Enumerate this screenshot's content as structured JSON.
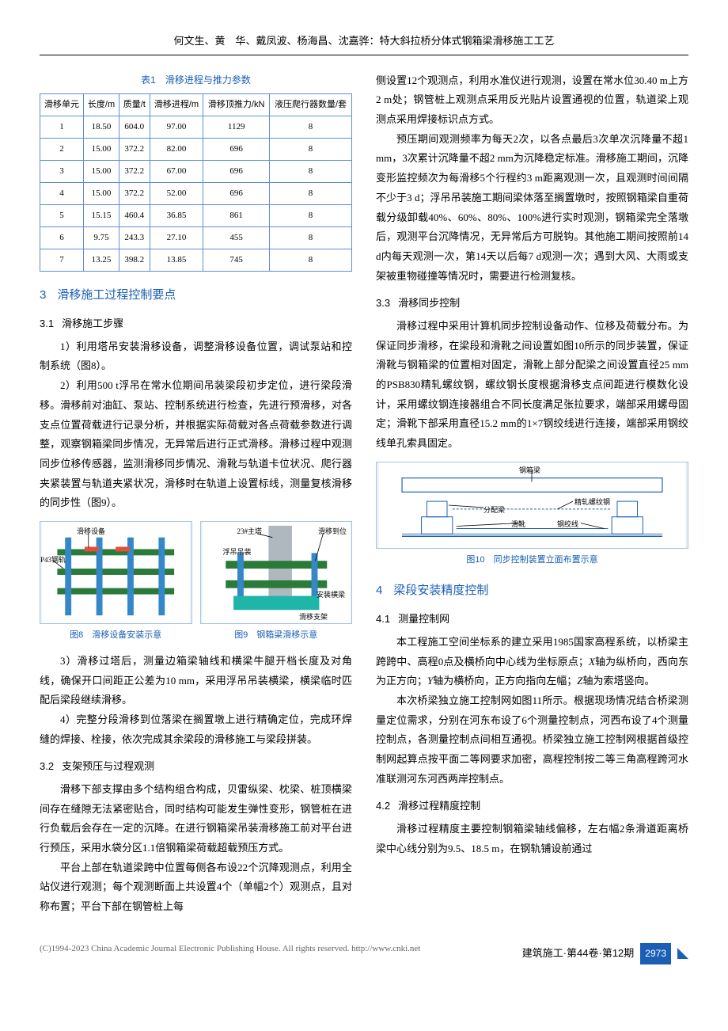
{
  "header": "何文生、黄　华、戴凤波、杨海昌、沈嘉骅：特大斜拉桥分体式钢箱梁滑移施工工艺",
  "table1": {
    "caption": "表1　滑移进程与推力参数",
    "headers": [
      "滑移单元",
      "长度/m",
      "质量/t",
      "滑移进程/m",
      "滑移顶推力/kN",
      "液压爬行器数量/套"
    ],
    "rows": [
      [
        "1",
        "18.50",
        "604.0",
        "97.00",
        "1129",
        "8"
      ],
      [
        "2",
        "15.00",
        "372.2",
        "82.00",
        "696",
        "8"
      ],
      [
        "3",
        "15.00",
        "372.2",
        "67.00",
        "696",
        "8"
      ],
      [
        "4",
        "15.00",
        "372.2",
        "52.00",
        "696",
        "8"
      ],
      [
        "5",
        "15.15",
        "460.4",
        "36.85",
        "861",
        "8"
      ],
      [
        "6",
        "9.75",
        "243.3",
        "27.10",
        "455",
        "8"
      ],
      [
        "7",
        "13.25",
        "398.2",
        "13.85",
        "745",
        "8"
      ]
    ]
  },
  "sec3": {
    "num": "3",
    "title": "滑移施工过程控制要点"
  },
  "sec31": {
    "num": "3.1",
    "title": "滑移施工步骤",
    "p1": "1）利用塔吊安装滑移设备，调整滑移设备位置，调试泵站和控制系统（图8）。",
    "p2": "2）利用500 t浮吊在常水位期间吊装梁段初步定位，进行梁段滑移。滑移前对油缸、泵站、控制系统进行检查，先进行预滑移，对各支点位置荷载进行记录分析，并根据实际荷载对各点荷载参数进行调整，观察钢箱梁同步情况，无异常后进行正式滑移。滑移过程中观测同步位移传感器，监测滑移同步情况、滑靴与轨道卡位状况、爬行器夹紧装置与轨道夹紧状况，滑移时在轨道上设置标线，测量复核滑移的同步性（图9）。",
    "p3": "3）滑移过塔后，测量边箱梁轴线和横梁牛腿开档长度及对角线，确保开口间距正公差为10 mm，采用浮吊吊装横梁，横梁临时匹配后梁段继续滑移。",
    "p4": "4）完整分段滑移到位落梁在搁置墩上进行精确定位，完成环焊缝的焊接、栓接，依次完成其余梁段的滑移施工与梁段拼装。"
  },
  "fig8": {
    "caption": "图8　滑移设备安装示意",
    "labels": {
      "a": "滑移设备",
      "b": "P43钢轨"
    }
  },
  "fig9": {
    "caption": "图9　钢箱梁滑移示意",
    "labels": {
      "a": "23#主塔",
      "b": "浮吊吊装",
      "c": "滑移到位",
      "d": "安装横梁",
      "e": "滑移支架"
    }
  },
  "sec32": {
    "num": "3.2",
    "title": "支架预压与过程观测",
    "p1": "滑移下部支撑由多个结构组合构成，贝雷纵梁、枕梁、桩顶横梁间存在缝隙无法紧密贴合，同时结构可能发生弹性变形，钢管桩在进行负载后会存在一定的沉降。在进行钢箱梁吊装滑移施工前对平台进行预压，采用水袋分区1.1倍钢箱梁荷载超载预压方式。",
    "p2": "平台上部在轨道梁跨中位置每侧各布设22个沉降观测点，利用全站仪进行观测；每个观测断面上共设置4个（单幅2个）观测点，且对称布置；平台下部在钢管桩上每",
    "p3": "侧设置12个观测点，利用水准仪进行观测，设置在常水位30.40 m上方2 m处；钢管桩上观测点采用反光贴片设置通视的位置，轨道梁上观测点采用焊接标识点方式。",
    "p4": "预压期间观测频率为每天2次，以各点最后3次单次沉降量不超1 mm，3次累计沉降量不超2 mm为沉降稳定标准。滑移施工期间，沉降变形监控频次为每滑移5个行程约3 m距离观测一次，且观测时间间隔不少于3 d；浮吊吊装施工期间梁体落至搁置墩时，按照钢箱梁自重荷载分级卸载40%、60%、80%、100%进行实时观测，钢箱梁完全落墩后，观测平台沉降情况，无异常后方可脱钩。其他施工期间按照前14 d内每天观测一次，第14天以后每7 d观测一次；遇到大风、大雨或支架被重物碰撞等情况时，需要进行检测复核。"
  },
  "sec33": {
    "num": "3.3",
    "title": "滑移同步控制",
    "p1": "滑移过程中采用计算机同步控制设备动作、位移及荷载分布。为保证同步滑移，在梁段和滑靴之间设置如图10所示的同步装置，保证滑靴与钢箱梁的位置相对固定，滑靴上部分配梁之间设置直径25 mm的PSB830精轧螺纹钢，螺纹钢长度根据滑移支点间距进行模数化设计，采用螺纹钢连接器组合不同长度满足张拉要求，端部采用螺母固定；滑靴下部采用直径15.2 mm的1×7钢绞线进行连接，端部采用钢绞线单孔索具固定。"
  },
  "fig10": {
    "caption": "图10　同步控制装置立面布置示意",
    "labels": {
      "a": "钢箱梁",
      "b": "精轧螺纹钢",
      "c": "分配梁",
      "d": "滑靴",
      "e": "钢绞线"
    }
  },
  "sec4": {
    "num": "4",
    "title": "梁段安装精度控制"
  },
  "sec41": {
    "num": "4.1",
    "title": "测量控制网",
    "p1_a": "本工程施工空间坐标系的建立采用1985国家高程系统，以桥梁主跨跨中、高程0点及横桥向中心线为坐标原点；",
    "p1_x": "X",
    "p1_b": "轴为纵桥向，西向东为正方向；",
    "p1_y": "Y",
    "p1_c": "轴为横桥向，正方向指向左幅；",
    "p1_z": "Z",
    "p1_d": "轴为索塔竖向。",
    "p2": "本次桥梁独立施工控制网如图11所示。根据现场情况结合桥梁测量定位需求，分别在河东布设了6个测量控制点，河西布设了4个测量控制点，各测量控制点间相互通视。桥梁独立施工控制网根据首级控制网起算点按平面二等网要求加密，高程控制按二等三角高程跨河水准联测河东河西两岸控制点。"
  },
  "sec42": {
    "num": "4.2",
    "title": "滑移过程精度控制",
    "p1": "滑移过程精度主要控制钢箱梁轴线偏移，左右幅2条滑道距离桥梁中心线分别为9.5、18.5 m，在钢轨铺设前通过"
  },
  "footer": {
    "left": "(C)1994-2023 China Academic Journal Electronic Publishing House. All rights reserved.    http://www.cnki.net",
    "right": "建筑施工·第44卷·第12期",
    "page": "2973"
  }
}
